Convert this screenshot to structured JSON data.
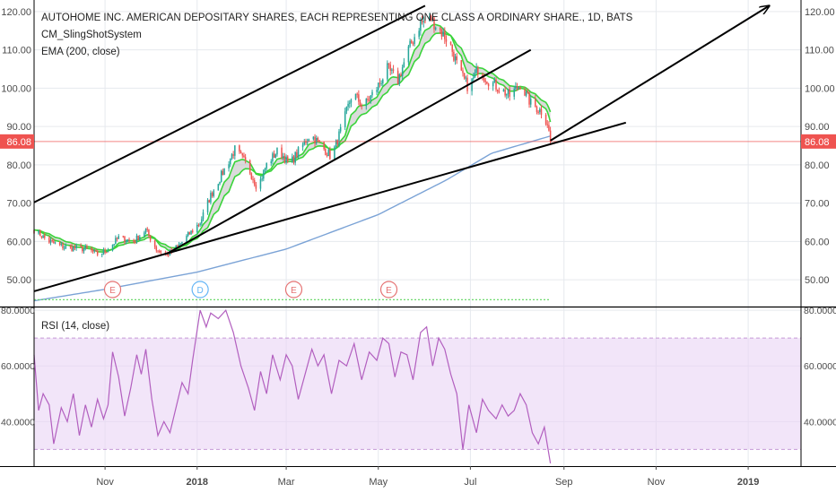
{
  "colors": {
    "background": "#ffffff",
    "grid": "#e6e9ee",
    "border": "#000000",
    "axis_text": "#4a4a4a",
    "up": "#26a69a",
    "down": "#ef5350",
    "ema_fast": "#3ad43a",
    "ema_slow": "#7ba3d6",
    "band_fill": "#bdbdbd",
    "price_line": "#ef5350",
    "rsi_line": "#b25fbf",
    "rsi_band": "#e9d4f5",
    "rsi_band_border": "#c59ad6",
    "earnings": "#e57373",
    "dividend": "#64b5f6",
    "event_line": "#5cd65c",
    "trendline": "#000000"
  },
  "header": {
    "symbol_line": "AUTOHOME INC. AMERICAN DEPOSITARY SHARES, EACH REPRESENTING ONE CLASS A ORDINARY SHARE., 1D, BATS",
    "indicator1": "CM_SlingShotSystem",
    "indicator2": "EMA (200, close)"
  },
  "rsi_label": "RSI (14, close)",
  "chart_data": [
    {
      "type": "candlestick",
      "title": "AUTOHOME INC. AMERICAN DEPOSITARY SHARES, EACH REPRESENTING ONE CLASS A ORDINARY SHARE., 1D, BATS",
      "date_range": [
        "2017-09-15",
        "2018-08-23"
      ],
      "x_axis_extent": [
        "2017-09-15",
        "2019-02-05"
      ],
      "x_ticks": [
        {
          "date": "2017-11-01",
          "label": "Nov"
        },
        {
          "date": "2018-01-01",
          "label": "2018"
        },
        {
          "date": "2018-03-01",
          "label": "Mar"
        },
        {
          "date": "2018-05-01",
          "label": "May"
        },
        {
          "date": "2018-07-01",
          "label": "Jul"
        },
        {
          "date": "2018-09-01",
          "label": "Sep"
        },
        {
          "date": "2018-11-01",
          "label": "Nov"
        },
        {
          "date": "2019-01-01",
          "label": "2019"
        }
      ],
      "y_ticks": [
        50,
        60,
        70,
        80,
        90,
        100,
        110,
        120
      ],
      "y_tick_labels": [
        "50.00",
        "60.00",
        "70.00",
        "80.00",
        "90.00",
        "100.00",
        "110.00",
        "120.00"
      ],
      "ylim": [
        43,
        123
      ],
      "last_price": 86.08,
      "last_price_label": "86.08",
      "price_path": [
        [
          "2017-09-15",
          63
        ],
        [
          "2017-09-25",
          60
        ],
        [
          "2017-10-05",
          58.5
        ],
        [
          "2017-10-20",
          58
        ],
        [
          "2017-10-28",
          56.5
        ],
        [
          "2017-11-03",
          58
        ],
        [
          "2017-11-10",
          61
        ],
        [
          "2017-11-20",
          60
        ],
        [
          "2017-11-28",
          63
        ],
        [
          "2017-12-05",
          58
        ],
        [
          "2017-12-12",
          56.5
        ],
        [
          "2017-12-20",
          59
        ],
        [
          "2017-12-27",
          62
        ],
        [
          "2018-01-03",
          65
        ],
        [
          "2018-01-10",
          72
        ],
        [
          "2018-01-18",
          78
        ],
        [
          "2018-01-26",
          84
        ],
        [
          "2018-02-03",
          80
        ],
        [
          "2018-02-10",
          74
        ],
        [
          "2018-02-16",
          80
        ],
        [
          "2018-02-24",
          84
        ],
        [
          "2018-03-03",
          80
        ],
        [
          "2018-03-10",
          84
        ],
        [
          "2018-03-17",
          88
        ],
        [
          "2018-03-24",
          85
        ],
        [
          "2018-03-31",
          82
        ],
        [
          "2018-04-07",
          90
        ],
        [
          "2018-04-14",
          99
        ],
        [
          "2018-04-21",
          95
        ],
        [
          "2018-04-30",
          100
        ],
        [
          "2018-05-07",
          105
        ],
        [
          "2018-05-14",
          102
        ],
        [
          "2018-05-21",
          110
        ],
        [
          "2018-05-29",
          117
        ],
        [
          "2018-06-05",
          118
        ],
        [
          "2018-06-11",
          115
        ],
        [
          "2018-06-17",
          112
        ],
        [
          "2018-06-24",
          104
        ],
        [
          "2018-06-30",
          100
        ],
        [
          "2018-07-06",
          105
        ],
        [
          "2018-07-13",
          102
        ],
        [
          "2018-07-20",
          100
        ],
        [
          "2018-07-27",
          98
        ],
        [
          "2018-08-03",
          101
        ],
        [
          "2018-08-10",
          96
        ],
        [
          "2018-08-17",
          94
        ],
        [
          "2018-08-21",
          91
        ],
        [
          "2018-08-23",
          86.08
        ]
      ],
      "ema200": [
        [
          "2017-09-15",
          44.5
        ],
        [
          "2017-11-01",
          47.5
        ],
        [
          "2018-01-01",
          52
        ],
        [
          "2018-03-01",
          58
        ],
        [
          "2018-05-01",
          67
        ],
        [
          "2018-06-15",
          76
        ],
        [
          "2018-07-15",
          83
        ],
        [
          "2018-08-23",
          87.5
        ]
      ],
      "trendlines": [
        {
          "from": [
            "2017-09-15",
            70.2
          ],
          "to": [
            "2018-06-01",
            121.5
          ]
        },
        {
          "from": [
            "2017-12-12",
            56.8
          ],
          "to": [
            "2018-08-10",
            110
          ]
        },
        {
          "from": [
            "2017-09-15",
            47.0
          ],
          "to": [
            "2018-10-12",
            91.0
          ]
        },
        {
          "from": [
            "2018-08-23",
            86.3
          ],
          "to": [
            "2019-01-15",
            121.5
          ],
          "arrow": true
        }
      ],
      "events": [
        {
          "date": "2017-11-06",
          "label": "E"
        },
        {
          "date": "2018-01-03",
          "label": "D"
        },
        {
          "date": "2018-03-06",
          "label": "E"
        },
        {
          "date": "2018-05-08",
          "label": "E"
        }
      ],
      "events_line_end": "2018-08-23"
    },
    {
      "type": "line",
      "title": "RSI (14, close)",
      "ylim": [
        24,
        81
      ],
      "band": [
        30,
        70
      ],
      "y_ticks": [
        40,
        60,
        80
      ],
      "y_tick_labels": [
        "40.0000",
        "60.0000",
        "80.0000"
      ],
      "rsi_path": [
        [
          "2017-09-15",
          64
        ],
        [
          "2017-09-18",
          44
        ],
        [
          "2017-09-21",
          50
        ],
        [
          "2017-09-25",
          46
        ],
        [
          "2017-09-28",
          32
        ],
        [
          "2017-10-03",
          45
        ],
        [
          "2017-10-07",
          40
        ],
        [
          "2017-10-11",
          50
        ],
        [
          "2017-10-15",
          35
        ],
        [
          "2017-10-19",
          46
        ],
        [
          "2017-10-23",
          38
        ],
        [
          "2017-10-27",
          48
        ],
        [
          "2017-10-31",
          41
        ],
        [
          "2017-11-03",
          46
        ],
        [
          "2017-11-06",
          65
        ],
        [
          "2017-11-10",
          56
        ],
        [
          "2017-11-14",
          42
        ],
        [
          "2017-11-18",
          52
        ],
        [
          "2017-11-22",
          64
        ],
        [
          "2017-11-25",
          57
        ],
        [
          "2017-11-28",
          66
        ],
        [
          "2017-12-02",
          48
        ],
        [
          "2017-12-06",
          35
        ],
        [
          "2017-12-10",
          40
        ],
        [
          "2017-12-14",
          36
        ],
        [
          "2017-12-18",
          45
        ],
        [
          "2017-12-22",
          54
        ],
        [
          "2017-12-26",
          50
        ],
        [
          "2017-12-29",
          62
        ],
        [
          "2018-01-03",
          80
        ],
        [
          "2018-01-07",
          74
        ],
        [
          "2018-01-10",
          79
        ],
        [
          "2018-01-15",
          77
        ],
        [
          "2018-01-20",
          80
        ],
        [
          "2018-01-25",
          72
        ],
        [
          "2018-01-30",
          60
        ],
        [
          "2018-02-04",
          52
        ],
        [
          "2018-02-08",
          44
        ],
        [
          "2018-02-12",
          58
        ],
        [
          "2018-02-16",
          50
        ],
        [
          "2018-02-20",
          64
        ],
        [
          "2018-02-25",
          55
        ],
        [
          "2018-03-01",
          64
        ],
        [
          "2018-03-05",
          60
        ],
        [
          "2018-03-09",
          48
        ],
        [
          "2018-03-14",
          58
        ],
        [
          "2018-03-18",
          66
        ],
        [
          "2018-03-22",
          60
        ],
        [
          "2018-03-26",
          64
        ],
        [
          "2018-03-31",
          50
        ],
        [
          "2018-04-05",
          62
        ],
        [
          "2018-04-10",
          60
        ],
        [
          "2018-04-15",
          68
        ],
        [
          "2018-04-20",
          55
        ],
        [
          "2018-04-25",
          65
        ],
        [
          "2018-04-30",
          62
        ],
        [
          "2018-05-04",
          70
        ],
        [
          "2018-05-08",
          68
        ],
        [
          "2018-05-12",
          56
        ],
        [
          "2018-05-16",
          65
        ],
        [
          "2018-05-20",
          64
        ],
        [
          "2018-05-24",
          55
        ],
        [
          "2018-05-29",
          72
        ],
        [
          "2018-06-02",
          74
        ],
        [
          "2018-06-06",
          60
        ],
        [
          "2018-06-10",
          70
        ],
        [
          "2018-06-14",
          66
        ],
        [
          "2018-06-18",
          57
        ],
        [
          "2018-06-22",
          50
        ],
        [
          "2018-06-26",
          30
        ],
        [
          "2018-06-30",
          46
        ],
        [
          "2018-07-05",
          36
        ],
        [
          "2018-07-09",
          48
        ],
        [
          "2018-07-13",
          44
        ],
        [
          "2018-07-18",
          41
        ],
        [
          "2018-07-22",
          46
        ],
        [
          "2018-07-26",
          42
        ],
        [
          "2018-07-30",
          44
        ],
        [
          "2018-08-03",
          50
        ],
        [
          "2018-08-07",
          46
        ],
        [
          "2018-08-11",
          36
        ],
        [
          "2018-08-15",
          32
        ],
        [
          "2018-08-19",
          38
        ],
        [
          "2018-08-23",
          25
        ]
      ]
    }
  ]
}
